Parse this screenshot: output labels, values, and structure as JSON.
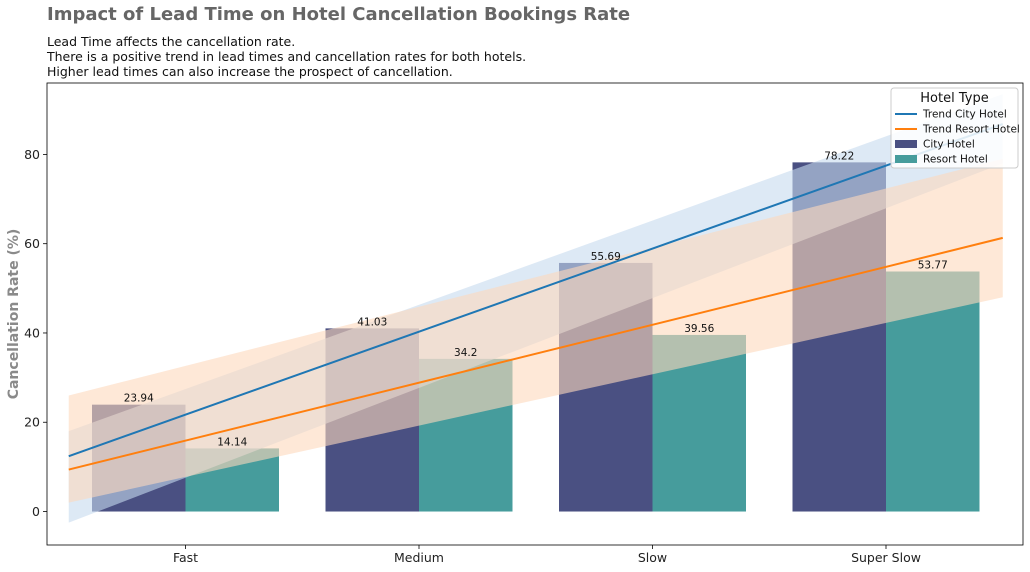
{
  "chart_data": {
    "type": "bar",
    "title": "Impact of Lead Time on Hotel Cancellation Bookings Rate",
    "subtitle_lines": [
      "Lead Time affects the cancellation rate.",
      "There is a positive trend in lead times and cancellation rates for both hotels.",
      "Higher lead times can also increase the prospect of cancellation."
    ],
    "xlabel": "",
    "ylabel": "Cancellation Rate (%)",
    "categories": [
      "Fast",
      "Medium",
      "Slow",
      "Super Slow"
    ],
    "series": [
      {
        "name": "City Hotel",
        "values": [
          23.94,
          41.03,
          55.69,
          78.22
        ],
        "color": "#4a5082"
      },
      {
        "name": "Resort Hotel",
        "values": [
          14.14,
          34.2,
          39.56,
          53.77
        ],
        "color": "#469c9c"
      }
    ],
    "trend_lines": [
      {
        "name": "Trend City Hotel",
        "x_range": [
          -0.5,
          3.5
        ],
        "y_range": [
          12.4,
          86.8
        ],
        "band_lower": [
          -2.5,
          78.0
        ],
        "band_upper": [
          18.0,
          93.5
        ],
        "color": "#1f77b4",
        "band_color": "#c6dbef"
      },
      {
        "name": "Trend Resort Hotel",
        "x_range": [
          -0.5,
          3.5
        ],
        "y_range": [
          9.4,
          61.3
        ],
        "band_lower": [
          2.0,
          48.0
        ],
        "band_upper": [
          26.0,
          79.0
        ],
        "color": "#ff7f0e",
        "band_color": "#fdd9bd"
      }
    ],
    "ylim": [
      -7.5,
      96
    ],
    "yticks": [
      0,
      20,
      40,
      60,
      80
    ],
    "legend": {
      "title": "Hotel Type",
      "position": "top-right"
    },
    "grid": false
  }
}
